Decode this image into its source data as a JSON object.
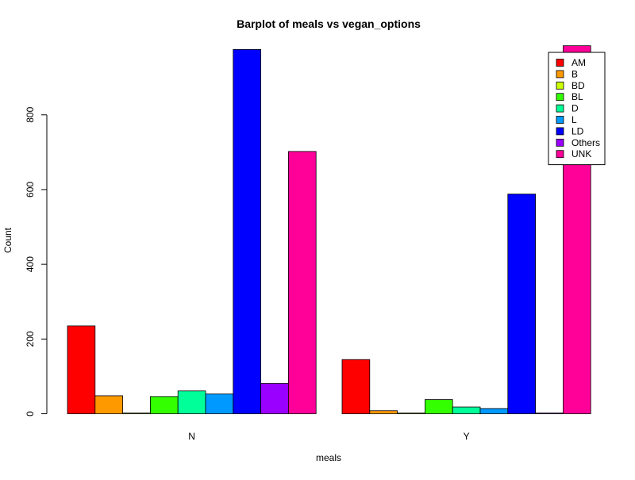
{
  "chart_data": {
    "type": "bar",
    "title": "Barplot of meals vs vegan_options",
    "xlabel": "meals",
    "ylabel": "Count",
    "ylim": [
      0,
      980
    ],
    "yticks": [
      0,
      200,
      400,
      600,
      800
    ],
    "categories": [
      "N",
      "Y"
    ],
    "grouped": true,
    "grid": false,
    "legend_position": "top-right",
    "series": [
      {
        "name": "AM",
        "color": "#FF0000",
        "values": [
          235,
          145
        ]
      },
      {
        "name": "B",
        "color": "#FF9900",
        "values": [
          48,
          8
        ]
      },
      {
        "name": "BD",
        "color": "#CCFF00",
        "values": [
          2,
          2
        ]
      },
      {
        "name": "BL",
        "color": "#33FF00",
        "values": [
          46,
          38
        ]
      },
      {
        "name": "D",
        "color": "#00FF99",
        "values": [
          61,
          18
        ]
      },
      {
        "name": "L",
        "color": "#0099FF",
        "values": [
          53,
          14
        ]
      },
      {
        "name": "LD",
        "color": "#0000FF",
        "values": [
          975,
          588
        ]
      },
      {
        "name": "Others",
        "color": "#9900FF",
        "values": [
          81,
          2
        ]
      },
      {
        "name": "UNK",
        "color": "#FF0099",
        "values": [
          702,
          985
        ]
      }
    ]
  }
}
